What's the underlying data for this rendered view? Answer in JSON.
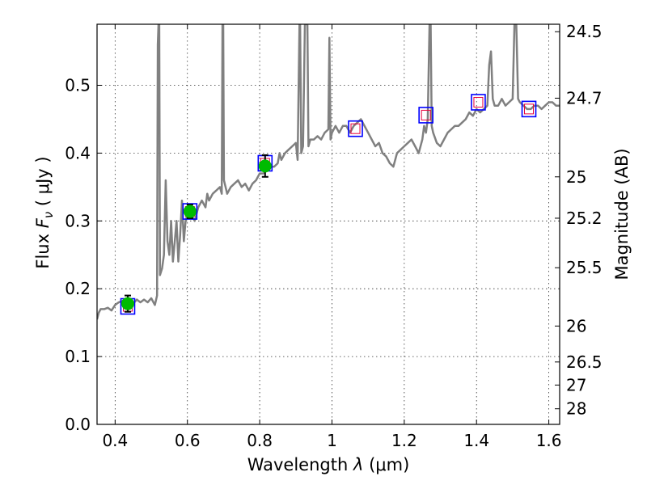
{
  "chart_data": {
    "type": "line",
    "xlabel": "Wavelength  λ (μm)",
    "ylabel": "Flux  F_ν  ( μJy )",
    "ylabel_parts": {
      "prefix": "Flux  ",
      "symbol": "F",
      "subscript": "ν",
      "suffix": "  ( μJy )"
    },
    "xlabel_parts": {
      "prefix": "Wavelength  ",
      "symbol": "λ",
      "suffix": " (μm)"
    },
    "y2label": "Magnitude (AB)",
    "xlim": [
      0.35,
      1.63
    ],
    "ylim": [
      0.0,
      0.59
    ],
    "grid": true,
    "x_ticks": [
      0.4,
      0.6,
      0.8,
      1.0,
      1.2,
      1.4,
      1.6
    ],
    "x_tick_labels": [
      "0.4",
      "0.6",
      "0.8",
      "1",
      "1.2",
      "1.4",
      "1.6"
    ],
    "y_ticks": [
      0.0,
      0.1,
      0.2,
      0.3,
      0.4,
      0.5
    ],
    "y_tick_labels": [
      "0.0",
      "0.1",
      "0.2",
      "0.3",
      "0.4",
      "0.5"
    ],
    "y2_ticks": [
      {
        "label": "24.5",
        "flux": 0.579
      },
      {
        "label": "24.7",
        "flux": 0.481
      },
      {
        "label": "25",
        "flux": 0.365
      },
      {
        "label": "25.2",
        "flux": 0.304
      },
      {
        "label": "25.5",
        "flux": 0.231
      },
      {
        "label": "26",
        "flux": 0.145
      },
      {
        "label": "26.5",
        "flux": 0.092
      },
      {
        "label": "27",
        "flux": 0.058
      },
      {
        "label": "28",
        "flux": 0.023
      }
    ],
    "colors": {
      "spectrum": "#808080",
      "photometry": "#00bb00",
      "model_box": "#0000ff",
      "model_inner": "#e8003c",
      "errorbar": "#000000"
    },
    "series": [
      {
        "name": "model spectrum",
        "type": "line",
        "points": [
          [
            0.35,
            0.155
          ],
          [
            0.355,
            0.165
          ],
          [
            0.36,
            0.17
          ],
          [
            0.37,
            0.17
          ],
          [
            0.38,
            0.172
          ],
          [
            0.39,
            0.168
          ],
          [
            0.4,
            0.176
          ],
          [
            0.41,
            0.18
          ],
          [
            0.42,
            0.182
          ],
          [
            0.43,
            0.18
          ],
          [
            0.44,
            0.176
          ],
          [
            0.45,
            0.178
          ],
          [
            0.46,
            0.184
          ],
          [
            0.47,
            0.18
          ],
          [
            0.48,
            0.184
          ],
          [
            0.49,
            0.18
          ],
          [
            0.5,
            0.186
          ],
          [
            0.51,
            0.176
          ],
          [
            0.516,
            0.19
          ],
          [
            0.518,
            0.56
          ],
          [
            0.52,
            0.59
          ],
          [
            0.522,
            0.59
          ],
          [
            0.524,
            0.22
          ],
          [
            0.53,
            0.23
          ],
          [
            0.535,
            0.25
          ],
          [
            0.54,
            0.36
          ],
          [
            0.545,
            0.27
          ],
          [
            0.55,
            0.25
          ],
          [
            0.555,
            0.3
          ],
          [
            0.56,
            0.24
          ],
          [
            0.565,
            0.27
          ],
          [
            0.57,
            0.3
          ],
          [
            0.575,
            0.24
          ],
          [
            0.58,
            0.28
          ],
          [
            0.585,
            0.33
          ],
          [
            0.59,
            0.27
          ],
          [
            0.595,
            0.3
          ],
          [
            0.6,
            0.31
          ],
          [
            0.61,
            0.31
          ],
          [
            0.62,
            0.3
          ],
          [
            0.63,
            0.32
          ],
          [
            0.64,
            0.33
          ],
          [
            0.65,
            0.32
          ],
          [
            0.655,
            0.34
          ],
          [
            0.66,
            0.33
          ],
          [
            0.67,
            0.34
          ],
          [
            0.68,
            0.345
          ],
          [
            0.69,
            0.35
          ],
          [
            0.695,
            0.34
          ],
          [
            0.697,
            0.59
          ],
          [
            0.699,
            0.59
          ],
          [
            0.701,
            0.36
          ],
          [
            0.71,
            0.34
          ],
          [
            0.72,
            0.35
          ],
          [
            0.73,
            0.355
          ],
          [
            0.74,
            0.36
          ],
          [
            0.75,
            0.35
          ],
          [
            0.76,
            0.355
          ],
          [
            0.77,
            0.345
          ],
          [
            0.78,
            0.355
          ],
          [
            0.79,
            0.36
          ],
          [
            0.8,
            0.37
          ],
          [
            0.81,
            0.37
          ],
          [
            0.82,
            0.375
          ],
          [
            0.83,
            0.38
          ],
          [
            0.84,
            0.38
          ],
          [
            0.85,
            0.385
          ],
          [
            0.855,
            0.4
          ],
          [
            0.86,
            0.39
          ],
          [
            0.87,
            0.4
          ],
          [
            0.88,
            0.405
          ],
          [
            0.89,
            0.41
          ],
          [
            0.9,
            0.415
          ],
          [
            0.905,
            0.39
          ],
          [
            0.91,
            0.59
          ],
          [
            0.912,
            0.59
          ],
          [
            0.915,
            0.4
          ],
          [
            0.92,
            0.41
          ],
          [
            0.925,
            0.59
          ],
          [
            0.928,
            0.59
          ],
          [
            0.932,
            0.59
          ],
          [
            0.935,
            0.41
          ],
          [
            0.94,
            0.42
          ],
          [
            0.95,
            0.42
          ],
          [
            0.96,
            0.425
          ],
          [
            0.97,
            0.42
          ],
          [
            0.98,
            0.43
          ],
          [
            0.99,
            0.435
          ],
          [
            0.993,
            0.57
          ],
          [
            0.996,
            0.42
          ],
          [
            1.0,
            0.43
          ],
          [
            1.01,
            0.44
          ],
          [
            1.02,
            0.43
          ],
          [
            1.03,
            0.44
          ],
          [
            1.04,
            0.44
          ],
          [
            1.05,
            0.43
          ],
          [
            1.06,
            0.44
          ],
          [
            1.07,
            0.445
          ],
          [
            1.08,
            0.45
          ],
          [
            1.09,
            0.44
          ],
          [
            1.1,
            0.43
          ],
          [
            1.11,
            0.42
          ],
          [
            1.12,
            0.41
          ],
          [
            1.13,
            0.415
          ],
          [
            1.14,
            0.4
          ],
          [
            1.15,
            0.395
          ],
          [
            1.16,
            0.385
          ],
          [
            1.17,
            0.38
          ],
          [
            1.18,
            0.4
          ],
          [
            1.19,
            0.405
          ],
          [
            1.2,
            0.41
          ],
          [
            1.21,
            0.415
          ],
          [
            1.22,
            0.42
          ],
          [
            1.23,
            0.41
          ],
          [
            1.24,
            0.4
          ],
          [
            1.25,
            0.42
          ],
          [
            1.255,
            0.44
          ],
          [
            1.26,
            0.43
          ],
          [
            1.265,
            0.45
          ],
          [
            1.27,
            0.59
          ],
          [
            1.273,
            0.59
          ],
          [
            1.276,
            0.44
          ],
          [
            1.28,
            0.43
          ],
          [
            1.29,
            0.415
          ],
          [
            1.3,
            0.41
          ],
          [
            1.31,
            0.42
          ],
          [
            1.32,
            0.43
          ],
          [
            1.33,
            0.435
          ],
          [
            1.34,
            0.44
          ],
          [
            1.35,
            0.44
          ],
          [
            1.36,
            0.445
          ],
          [
            1.37,
            0.45
          ],
          [
            1.38,
            0.46
          ],
          [
            1.39,
            0.455
          ],
          [
            1.4,
            0.465
          ],
          [
            1.41,
            0.46
          ],
          [
            1.42,
            0.465
          ],
          [
            1.43,
            0.47
          ],
          [
            1.435,
            0.53
          ],
          [
            1.44,
            0.55
          ],
          [
            1.445,
            0.48
          ],
          [
            1.45,
            0.47
          ],
          [
            1.46,
            0.47
          ],
          [
            1.47,
            0.48
          ],
          [
            1.48,
            0.47
          ],
          [
            1.49,
            0.475
          ],
          [
            1.5,
            0.48
          ],
          [
            1.505,
            0.59
          ],
          [
            1.51,
            0.59
          ],
          [
            1.515,
            0.48
          ],
          [
            1.52,
            0.475
          ],
          [
            1.53,
            0.47
          ],
          [
            1.54,
            0.465
          ],
          [
            1.55,
            0.465
          ],
          [
            1.56,
            0.47
          ],
          [
            1.57,
            0.47
          ],
          [
            1.58,
            0.465
          ],
          [
            1.59,
            0.47
          ],
          [
            1.6,
            0.475
          ],
          [
            1.61,
            0.475
          ],
          [
            1.62,
            0.47
          ],
          [
            1.63,
            0.47
          ]
        ]
      },
      {
        "name": "observed photometry",
        "type": "scatter",
        "points": [
          {
            "x": 0.435,
            "y": 0.178,
            "yerr": 0.012
          },
          {
            "x": 0.607,
            "y": 0.314,
            "yerr": 0.01
          },
          {
            "x": 0.815,
            "y": 0.381,
            "yerr": 0.016
          }
        ]
      },
      {
        "name": "model photometry",
        "type": "scatter",
        "points": [
          {
            "x": 0.435,
            "y": 0.174
          },
          {
            "x": 0.607,
            "y": 0.314
          },
          {
            "x": 0.815,
            "y": 0.385
          },
          {
            "x": 1.065,
            "y": 0.436
          },
          {
            "x": 1.26,
            "y": 0.456
          },
          {
            "x": 1.405,
            "y": 0.475
          },
          {
            "x": 1.545,
            "y": 0.465
          }
        ]
      }
    ]
  }
}
